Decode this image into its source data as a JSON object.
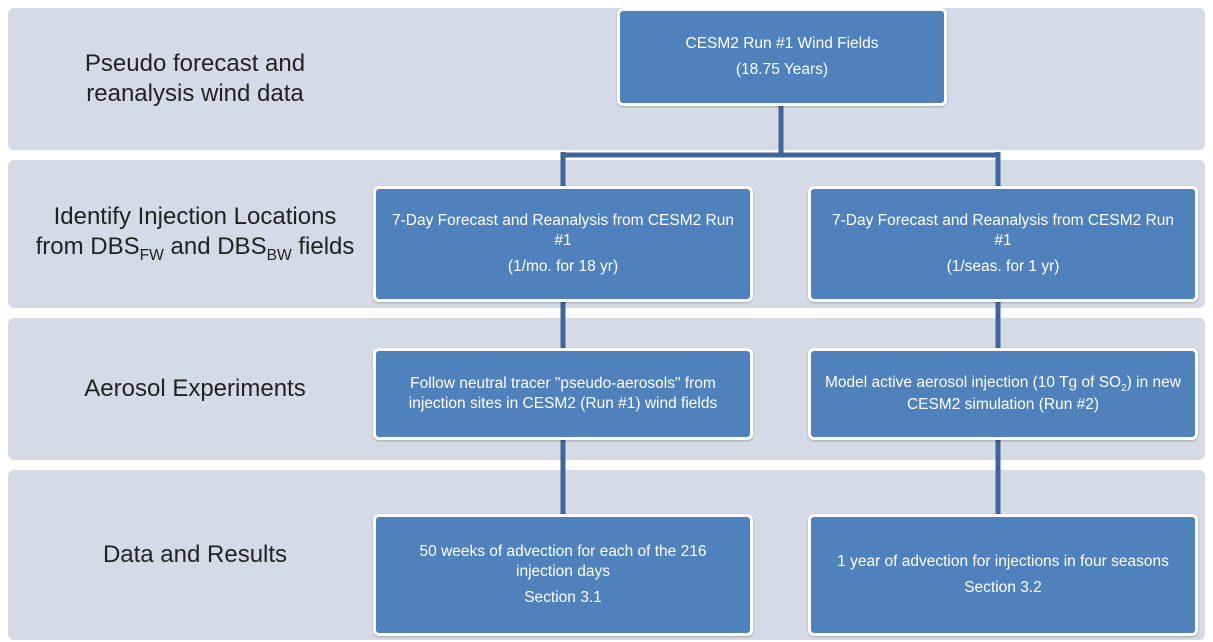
{
  "rows": [
    {
      "label": [
        {
          "text": "Pseudo forecast and reanalysis wind data"
        }
      ],
      "boxes": [
        {
          "paragraphs": [
            [
              {
                "text": "CESM2 Run #1 Wind Fields"
              }
            ],
            [
              {
                "text": "(18.75 Years)"
              }
            ]
          ]
        }
      ]
    },
    {
      "label": [
        {
          "text": "Identify Injection Locations from DBS"
        },
        {
          "sub": "FW"
        },
        {
          "text": " and DBS"
        },
        {
          "sub": "BW"
        },
        {
          "text": " fields"
        }
      ],
      "boxes": [
        {
          "paragraphs": [
            [
              {
                "text": "7-Day Forecast and Reanalysis from CESM2 Run #1"
              }
            ],
            [
              {
                "text": "(1/mo. for 18 yr)"
              }
            ]
          ]
        },
        {
          "paragraphs": [
            [
              {
                "text": "7-Day Forecast and Reanalysis from CESM2 Run #1"
              }
            ],
            [
              {
                "text": "(1/seas. for 1 yr)"
              }
            ]
          ]
        }
      ]
    },
    {
      "label": [
        {
          "text": "Aerosol Experiments"
        }
      ],
      "boxes": [
        {
          "paragraphs": [
            [
              {
                "text": "Follow neutral tracer \"pseudo-aerosols\" from injection sites in CESM2 (Run #1) wind fields"
              }
            ]
          ]
        },
        {
          "paragraphs": [
            [
              {
                "text": "Model active aerosol injection (10 Tg of SO"
              },
              {
                "sub": "2"
              },
              {
                "text": ") in new CESM2 simulation (Run #2)"
              }
            ]
          ]
        }
      ]
    },
    {
      "label": [
        {
          "text": "Data and Results"
        }
      ],
      "boxes": [
        {
          "paragraphs": [
            [
              {
                "text": "50 weeks of advection for each of the 216 injection days"
              }
            ],
            [
              {
                "text": "Section 3.1"
              }
            ]
          ]
        },
        {
          "paragraphs": [
            [
              {
                "text": "1 year of advection for injections in four seasons"
              }
            ],
            [
              {
                "text": "Section 3.2"
              }
            ]
          ]
        }
      ]
    }
  ]
}
